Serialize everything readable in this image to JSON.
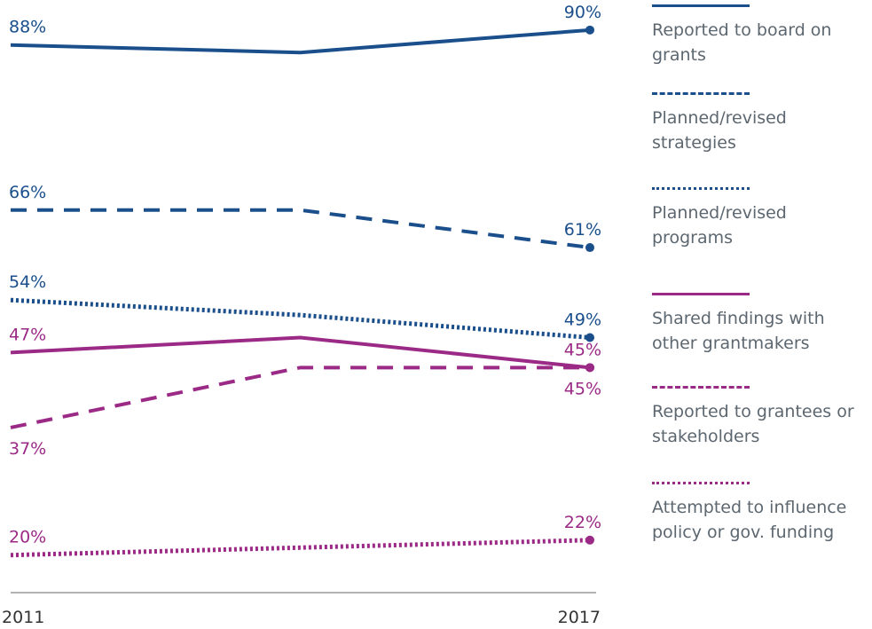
{
  "chart_data": {
    "type": "line",
    "categories": [
      "2011",
      null,
      "2017"
    ],
    "ylim": [
      15,
      94
    ],
    "series": [
      {
        "name": "Reported to board on grants",
        "color": "#1a4f8c",
        "line_style": "solid",
        "values": [
          88,
          87,
          90
        ],
        "value_labels": [
          "88%",
          null,
          "90%"
        ]
      },
      {
        "name": "Planned/revised strategies",
        "color": "#1a4f8c",
        "line_style": "dashed",
        "values": [
          66,
          66,
          61
        ],
        "value_labels": [
          "66%",
          null,
          "61%"
        ]
      },
      {
        "name": "Planned/revised programs",
        "color": "#1a4f8c",
        "line_style": "dotted",
        "values": [
          54,
          52,
          49
        ],
        "value_labels": [
          "54%",
          null,
          "49%"
        ]
      },
      {
        "name": "Shared findings with other grantmakers",
        "color": "#9b2a86",
        "line_style": "solid",
        "values": [
          47,
          49,
          45
        ],
        "value_labels": [
          "47%",
          null,
          "45%"
        ]
      },
      {
        "name": "Reported to grantees or stakeholders",
        "color": "#9b2a86",
        "line_style": "dashed",
        "values": [
          37,
          45,
          45
        ],
        "value_labels": [
          "37%",
          null,
          "45%"
        ]
      },
      {
        "name": "Attempted to influence policy or gov. funding",
        "color": "#9b2a86",
        "line_style": "dotted",
        "values": [
          20,
          21,
          22
        ],
        "value_labels": [
          "20%",
          null,
          "22%"
        ]
      }
    ]
  }
}
